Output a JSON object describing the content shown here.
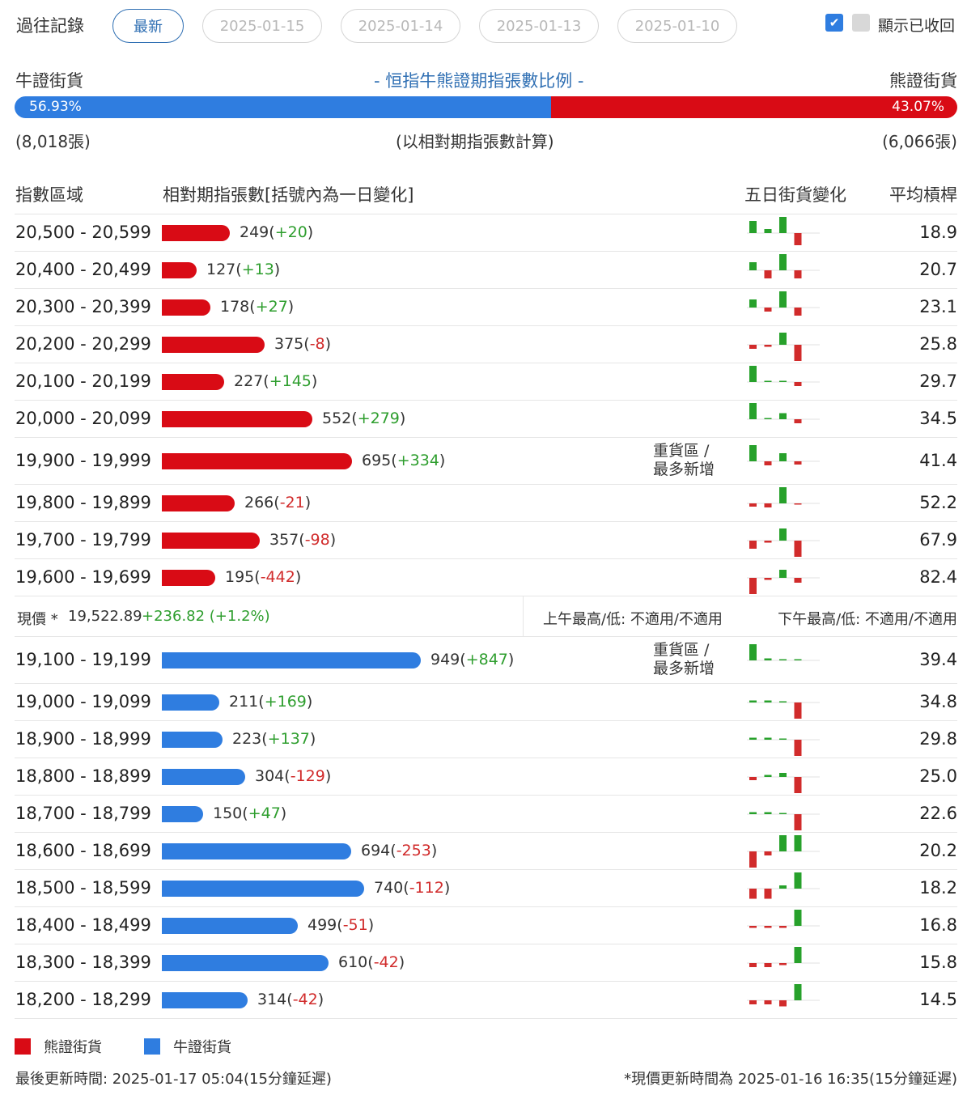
{
  "history": {
    "label": "過往記錄",
    "tabs": [
      "最新",
      "2025-01-15",
      "2025-01-14",
      "2025-01-13",
      "2025-01-10"
    ],
    "show_collapsed_label": "顯示已收回"
  },
  "ratio": {
    "left_label": "牛證街貨",
    "title": "- 恒指牛熊證期指張數比例 -",
    "right_label": "熊證街貨",
    "bull_pct": 56.93,
    "bull_pct_text": "56.93%",
    "bear_pct_text": "43.07%",
    "bull_count_text": "(8,018張)",
    "note": "(以相對期指張數計算)",
    "bear_count_text": "(6,066張)"
  },
  "table_header": {
    "range": "指數區域",
    "contracts": "相對期指張數[括號內為一日變化]",
    "five_day": "五日街貨變化",
    "avg_leverage": "平均槓桿"
  },
  "heavy_label_line1": "重貨區 /",
  "heavy_label_line2": "最多新增",
  "chart_data": {
    "type": "bar",
    "title": "恒指牛熊證期指張數比例",
    "series": [
      {
        "name": "熊證街貨",
        "color": "#d90b15"
      },
      {
        "name": "牛證街貨",
        "color": "#2f7de0"
      }
    ],
    "bear_rows": [
      {
        "range": "20,500 - 20,599",
        "value": 249,
        "change": 20,
        "avg": "18.9",
        "heavy": false,
        "spark": [
          3,
          1,
          4,
          -3
        ]
      },
      {
        "range": "20,400 - 20,499",
        "value": 127,
        "change": 13,
        "avg": "20.7",
        "heavy": false,
        "spark": [
          2,
          -2,
          4,
          -2
        ]
      },
      {
        "range": "20,300 - 20,399",
        "value": 178,
        "change": 27,
        "avg": "23.1",
        "heavy": false,
        "spark": [
          2,
          -1,
          4,
          -2
        ]
      },
      {
        "range": "20,200 - 20,299",
        "value": 375,
        "change": -8,
        "avg": "25.8",
        "heavy": false,
        "spark": [
          -1,
          -0.5,
          3,
          -4
        ]
      },
      {
        "range": "20,100 - 20,199",
        "value": 227,
        "change": 145,
        "avg": "29.7",
        "heavy": false,
        "spark": [
          4,
          0.3,
          0.3,
          -1
        ]
      },
      {
        "range": "20,000 - 20,099",
        "value": 552,
        "change": 279,
        "avg": "34.5",
        "heavy": false,
        "spark": [
          4,
          0.3,
          1.5,
          -1
        ]
      },
      {
        "range": "19,900 - 19,999",
        "value": 695,
        "change": 334,
        "avg": "41.4",
        "heavy": true,
        "spark": [
          4,
          -1,
          2,
          -0.8
        ]
      },
      {
        "range": "19,800 - 19,899",
        "value": 266,
        "change": -21,
        "avg": "52.2",
        "heavy": false,
        "spark": [
          -0.8,
          -1,
          4,
          -0.3
        ]
      },
      {
        "range": "19,700 - 19,799",
        "value": 357,
        "change": -98,
        "avg": "67.9",
        "heavy": false,
        "spark": [
          -2,
          -0.5,
          3,
          -4
        ]
      },
      {
        "range": "19,600 - 19,699",
        "value": 195,
        "change": -442,
        "avg": "82.4",
        "heavy": false,
        "spark": [
          -4,
          -0.5,
          2,
          -1.2
        ]
      }
    ],
    "bull_rows": [
      {
        "range": "19,100 - 19,199",
        "value": 949,
        "change": 847,
        "avg": "39.4",
        "heavy": true,
        "spark": [
          4,
          0.5,
          0,
          0
        ]
      },
      {
        "range": "19,000 - 19,099",
        "value": 211,
        "change": 169,
        "avg": "34.8",
        "heavy": false,
        "spark": [
          0.5,
          0.5,
          0,
          -4
        ]
      },
      {
        "range": "18,900 - 18,999",
        "value": 223,
        "change": 137,
        "avg": "29.8",
        "heavy": false,
        "spark": [
          0.5,
          0.5,
          0,
          -4
        ]
      },
      {
        "range": "18,800 - 18,899",
        "value": 304,
        "change": -129,
        "avg": "25.0",
        "heavy": false,
        "spark": [
          -0.8,
          0.5,
          1,
          -4
        ]
      },
      {
        "range": "18,700 - 18,799",
        "value": 150,
        "change": 47,
        "avg": "22.6",
        "heavy": false,
        "spark": [
          0.5,
          0.5,
          0,
          -4
        ]
      },
      {
        "range": "18,600 - 18,699",
        "value": 694,
        "change": -253,
        "avg": "20.2",
        "heavy": false,
        "spark": [
          -4,
          -1,
          4,
          4
        ]
      },
      {
        "range": "18,500 - 18,599",
        "value": 740,
        "change": -112,
        "avg": "18.2",
        "heavy": false,
        "spark": [
          -2.5,
          -2.5,
          0.8,
          4
        ]
      },
      {
        "range": "18,400 - 18,499",
        "value": 499,
        "change": -51,
        "avg": "16.8",
        "heavy": false,
        "spark": [
          -0.5,
          -0.5,
          -0.5,
          4
        ]
      },
      {
        "range": "18,300 - 18,399",
        "value": 610,
        "change": -42,
        "avg": "15.8",
        "heavy": false,
        "spark": [
          -1,
          -1,
          -0.5,
          4
        ]
      },
      {
        "range": "18,200 - 18,299",
        "value": 314,
        "change": -42,
        "avg": "14.5",
        "heavy": false,
        "spark": [
          -1,
          -1,
          -1.5,
          4
        ]
      }
    ]
  },
  "current_price": {
    "label": "現價 *",
    "value": "19,522.89",
    "change": "+236.82 (+1.2%)",
    "am_text": "上午最高/低: 不適用/不適用",
    "pm_text": "下午最高/低: 不適用/不適用"
  },
  "legend": {
    "bear": "熊證街貨",
    "bull": "牛證街貨"
  },
  "footer": {
    "last_update": "最後更新時間: 2025-01-17 05:04(15分鐘延遲)",
    "price_update": "*現價更新時間為 2025-01-16 16:35(15分鐘延遲)"
  }
}
